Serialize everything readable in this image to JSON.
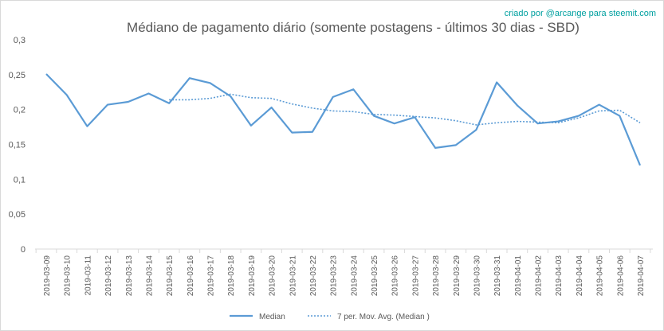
{
  "chart_data": {
    "type": "line",
    "title": "Médiano de pagamento diário (somente postagens - últimos 30 dias - SBD)",
    "credit": "criado por @arcange para steemit.com",
    "xlabel": "",
    "ylabel": "",
    "ylim": [
      0,
      0.3
    ],
    "y_ticks": [
      "0",
      "0,05",
      "0,1",
      "0,15",
      "0,2",
      "0,25",
      "0,3"
    ],
    "y_tick_values": [
      0,
      0.05,
      0.1,
      0.15,
      0.2,
      0.25,
      0.3
    ],
    "grid": false,
    "legend_position": "bottom",
    "categories": [
      "2019-03-09",
      "2019-03-10",
      "2019-03-11",
      "2019-03-12",
      "2019-03-13",
      "2019-03-14",
      "2019-03-15",
      "2019-03-16",
      "2019-03-17",
      "2019-03-18",
      "2019-03-19",
      "2019-03-20",
      "2019-03-21",
      "2019-03-22",
      "2019-03-23",
      "2019-03-24",
      "2019-03-25",
      "2019-03-26",
      "2019-03-27",
      "2019-03-28",
      "2019-03-29",
      "2019-03-30",
      "2019-03-31",
      "2019-04-01",
      "2019-04-02",
      "2019-04-03",
      "2019-04-04",
      "2019-04-05",
      "2019-04-06",
      "2019-04-07"
    ],
    "series": [
      {
        "name": "Median",
        "color": "#5b9bd5",
        "style": "solid",
        "values": [
          0.251,
          0.221,
          0.176,
          0.207,
          0.211,
          0.223,
          0.209,
          0.245,
          0.238,
          0.219,
          0.177,
          0.203,
          0.167,
          0.168,
          0.218,
          0.229,
          0.191,
          0.18,
          0.189,
          0.145,
          0.149,
          0.171,
          0.239,
          0.206,
          0.18,
          0.183,
          0.191,
          0.207,
          0.191,
          0.12
        ]
      },
      {
        "name": "7 per. Mov. Avg. (Median )",
        "color": "#5b9bd5",
        "style": "dotted",
        "values": [
          null,
          null,
          null,
          null,
          null,
          null,
          0.214,
          0.214,
          0.216,
          0.222,
          0.217,
          0.216,
          0.208,
          0.202,
          0.198,
          0.197,
          0.193,
          0.192,
          0.19,
          0.188,
          0.184,
          0.178,
          0.181,
          0.183,
          0.182,
          0.181,
          0.188,
          0.198,
          0.199,
          0.181
        ]
      }
    ]
  }
}
